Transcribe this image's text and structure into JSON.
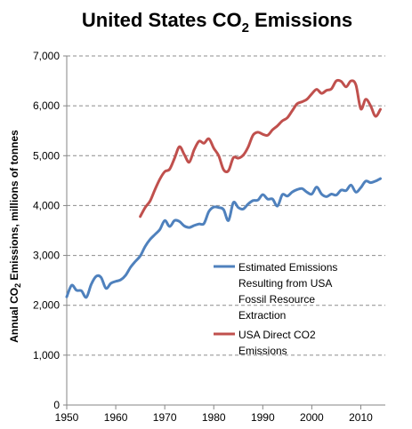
{
  "chart_data": {
    "type": "line",
    "title": "United States CO",
    "title_sub": "2",
    "title_suffix": " Emissions",
    "ylabel": "Annual CO",
    "ylabel_sub": "2",
    "ylabel_suffix": " Emissions, millions of tonnes",
    "xlim": [
      1950,
      2015
    ],
    "ylim": [
      0,
      7000
    ],
    "x_ticks": [
      1950,
      1960,
      1970,
      1980,
      1990,
      2000,
      2010
    ],
    "x_tick_labels": [
      "1950",
      "1960",
      "1970",
      "1980",
      "1990",
      "2000",
      "2010"
    ],
    "y_ticks": [
      0,
      1000,
      2000,
      3000,
      4000,
      5000,
      6000,
      7000
    ],
    "y_tick_labels": [
      "0",
      "1,000",
      "2,000",
      "3,000",
      "4,000",
      "5,000",
      "6,000",
      "7,000"
    ],
    "grid": "horizontal dashed",
    "legend_position": "right-middle",
    "series": [
      {
        "name": "Estimated Emissions Resulting from USA Fossil Resource Extraction",
        "legend_lines": [
          "Estimated Emissions",
          "Resulting from USA",
          "Fossil Resource",
          "Extraction"
        ],
        "color": "#4f81bd",
        "x": [
          1950,
          1951,
          1952,
          1953,
          1954,
          1955,
          1956,
          1957,
          1958,
          1959,
          1960,
          1961,
          1962,
          1963,
          1964,
          1965,
          1966,
          1967,
          1968,
          1969,
          1970,
          1971,
          1972,
          1973,
          1974,
          1975,
          1976,
          1977,
          1978,
          1979,
          1980,
          1981,
          1982,
          1983,
          1984,
          1985,
          1986,
          1987,
          1988,
          1989,
          1990,
          1991,
          1992,
          1993,
          1994,
          1995,
          1996,
          1997,
          1998,
          1999,
          2000,
          2001,
          2002,
          2003,
          2004,
          2005,
          2006,
          2007,
          2008,
          2009,
          2010,
          2011,
          2012,
          2013,
          2014
        ],
        "values": [
          2170,
          2400,
          2300,
          2290,
          2160,
          2420,
          2580,
          2560,
          2340,
          2440,
          2480,
          2510,
          2600,
          2760,
          2880,
          2990,
          3180,
          3320,
          3420,
          3520,
          3700,
          3580,
          3700,
          3680,
          3590,
          3560,
          3600,
          3630,
          3640,
          3880,
          3970,
          3960,
          3920,
          3700,
          4060,
          3960,
          3930,
          4030,
          4100,
          4110,
          4220,
          4130,
          4130,
          3990,
          4220,
          4190,
          4270,
          4320,
          4340,
          4270,
          4230,
          4370,
          4230,
          4180,
          4230,
          4210,
          4310,
          4300,
          4410,
          4270,
          4360,
          4490,
          4460,
          4490,
          4540
        ]
      },
      {
        "name": "USA Direct CO2 Emissions",
        "legend_lines": [
          "USA Direct CO2",
          "Emissions"
        ],
        "color": "#c0504d",
        "x": [
          1965,
          1966,
          1967,
          1968,
          1969,
          1970,
          1971,
          1972,
          1973,
          1974,
          1975,
          1976,
          1977,
          1978,
          1979,
          1980,
          1981,
          1982,
          1983,
          1984,
          1985,
          1986,
          1987,
          1988,
          1989,
          1990,
          1991,
          1992,
          1993,
          1994,
          1995,
          1996,
          1997,
          1998,
          1999,
          2000,
          2001,
          2002,
          2003,
          2004,
          2005,
          2006,
          2007,
          2008,
          2009,
          2010,
          2011,
          2012,
          2013,
          2014
        ],
        "values": [
          3780,
          3960,
          4090,
          4320,
          4530,
          4680,
          4730,
          4950,
          5180,
          5020,
          4870,
          5120,
          5290,
          5250,
          5340,
          5150,
          5000,
          4720,
          4700,
          4960,
          4950,
          5010,
          5170,
          5410,
          5470,
          5430,
          5410,
          5520,
          5600,
          5700,
          5760,
          5900,
          6040,
          6080,
          6130,
          6240,
          6330,
          6250,
          6310,
          6340,
          6500,
          6490,
          6380,
          6500,
          6420,
          5940,
          6130,
          6000,
          5790,
          5930
        ]
      }
    ]
  }
}
